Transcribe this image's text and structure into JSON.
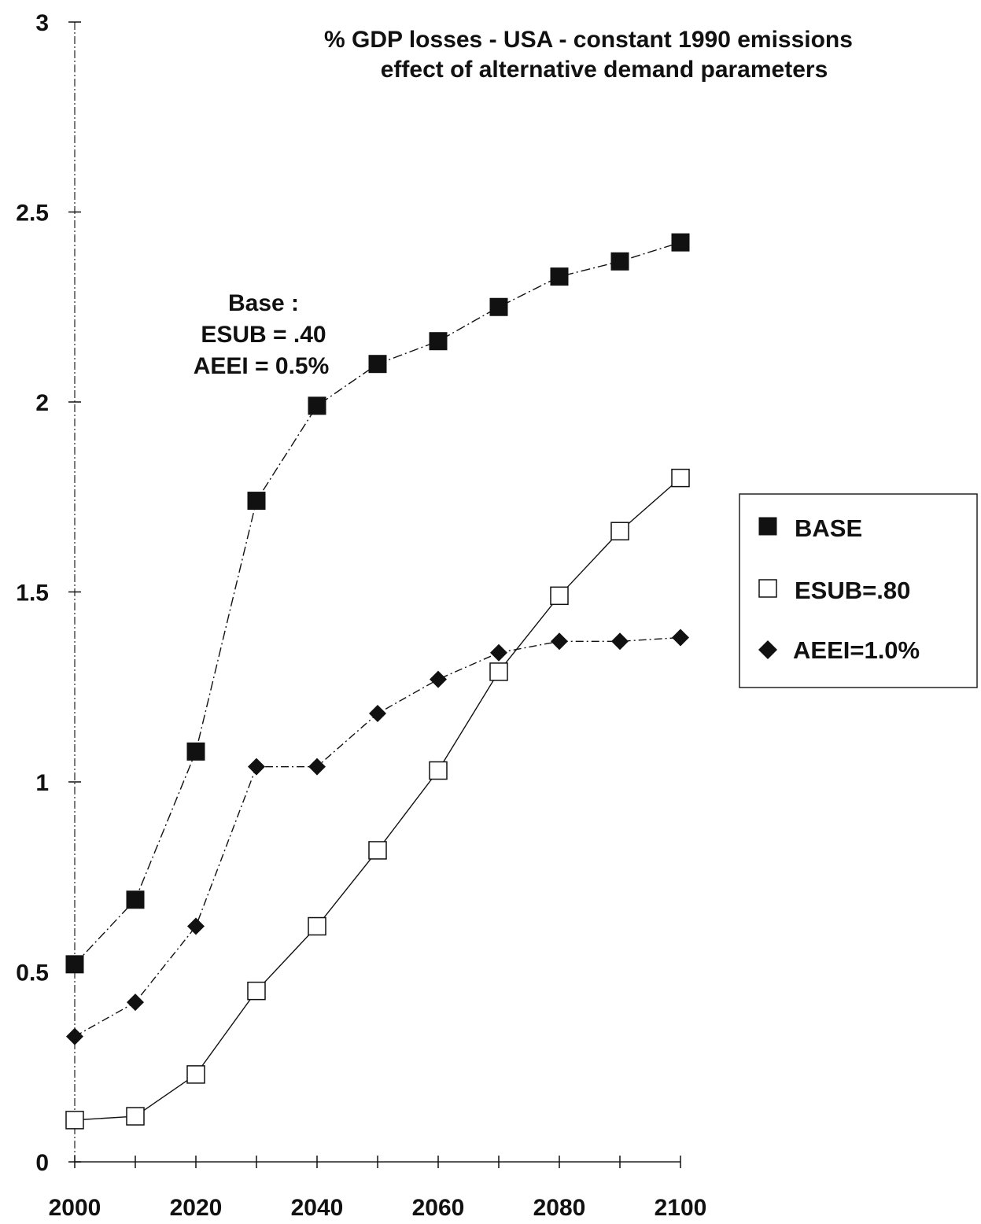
{
  "chart_data": {
    "type": "line",
    "title": "%  GDP losses - USA  - constant 1990 emissions",
    "subtitle": "effect of alternative demand parameters",
    "xlabel": "",
    "ylabel": "",
    "x": [
      2000,
      2010,
      2020,
      2030,
      2040,
      2050,
      2060,
      2070,
      2080,
      2090,
      2100
    ],
    "x_ticks": [
      "2000",
      "2020",
      "2040",
      "2060",
      "2080",
      "2100"
    ],
    "y_ticks": [
      "0",
      "0.5",
      "1",
      "1.5",
      "2",
      "2.5",
      "3"
    ],
    "xlim": [
      2000,
      2100
    ],
    "ylim": [
      0,
      3
    ],
    "grid": false,
    "legend_position": "right",
    "annotation": [
      "Base :",
      "ESUB = .40",
      "AEEI = 0.5%"
    ],
    "series": [
      {
        "name": "BASE",
        "marker": "filled-square",
        "values": [
          0.52,
          0.69,
          1.08,
          1.74,
          1.99,
          2.1,
          2.16,
          2.25,
          2.33,
          2.37,
          2.42
        ]
      },
      {
        "name": "ESUB=.80",
        "marker": "open-square",
        "values": [
          0.11,
          0.12,
          0.23,
          0.45,
          0.62,
          0.82,
          1.03,
          1.29,
          1.49,
          1.66,
          1.8
        ]
      },
      {
        "name": "AEEI=1.0%",
        "marker": "filled-diamond",
        "values": [
          0.33,
          0.42,
          0.62,
          1.04,
          1.04,
          1.18,
          1.27,
          1.34,
          1.37,
          1.37,
          1.38
        ]
      }
    ],
    "colors": {
      "ink": "#111111",
      "open_fill": "#ffffff"
    }
  }
}
